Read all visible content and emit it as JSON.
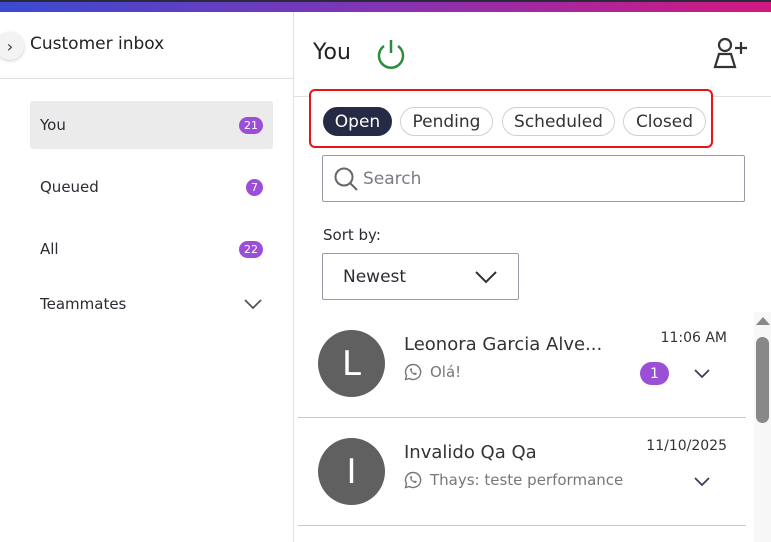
{
  "sidebar": {
    "title": "Customer inbox",
    "items": [
      {
        "label": "You",
        "count": "21"
      },
      {
        "label": "Queued",
        "count": "7"
      },
      {
        "label": "All",
        "count": "22"
      },
      {
        "label": "Teammates"
      }
    ]
  },
  "header": {
    "title": "You"
  },
  "tabs": [
    {
      "label": "Open",
      "selected": true
    },
    {
      "label": "Pending"
    },
    {
      "label": "Scheduled"
    },
    {
      "label": "Closed"
    }
  ],
  "search": {
    "placeholder": "Search"
  },
  "sort": {
    "label": "Sort by:",
    "value": "Newest"
  },
  "conversations": [
    {
      "initial": "L",
      "name": "Leonora Garcia Alve...",
      "preview": "Olá!",
      "time": "11:06 AM",
      "unread": "1",
      "channel": "whatsapp-icon"
    },
    {
      "initial": "I",
      "name": "Invalido Qa Qa",
      "preview": "Thays: teste performance",
      "time": "11/10/2025",
      "channel": "whatsapp-icon"
    }
  ],
  "colors": {
    "accent": "#9b4fd6",
    "selected_tab": "#262b45",
    "status_online": "#2e8b3a",
    "highlight": "#e8131a"
  }
}
